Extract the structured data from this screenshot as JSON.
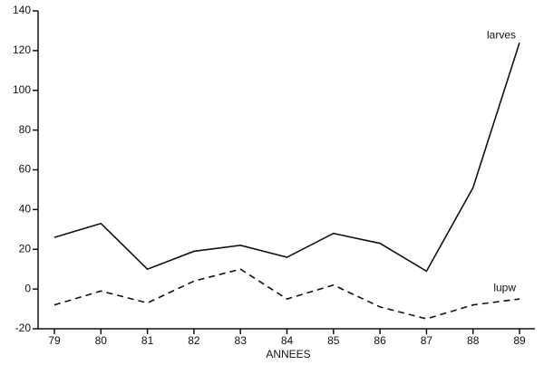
{
  "chart_data": {
    "type": "line",
    "x_label": "ANNEES",
    "categories": [
      "79",
      "80",
      "81",
      "82",
      "83",
      "84",
      "85",
      "86",
      "87",
      "88",
      "89"
    ],
    "series": [
      {
        "name": "larves",
        "color": "#111111",
        "line_style": "solid",
        "values": [
          26,
          33,
          10,
          19,
          22,
          16,
          28,
          23,
          9,
          51,
          124
        ]
      },
      {
        "name": "lupw",
        "color": "#111111",
        "line_style": "dashed",
        "values": [
          -8,
          -1,
          -7,
          4,
          10,
          -5,
          2,
          -9,
          -15,
          -8,
          -5
        ]
      }
    ],
    "ylim": [
      -20,
      140
    ],
    "yticks": [
      -20,
      0,
      20,
      40,
      60,
      80,
      100,
      120,
      140
    ],
    "grid": false
  }
}
